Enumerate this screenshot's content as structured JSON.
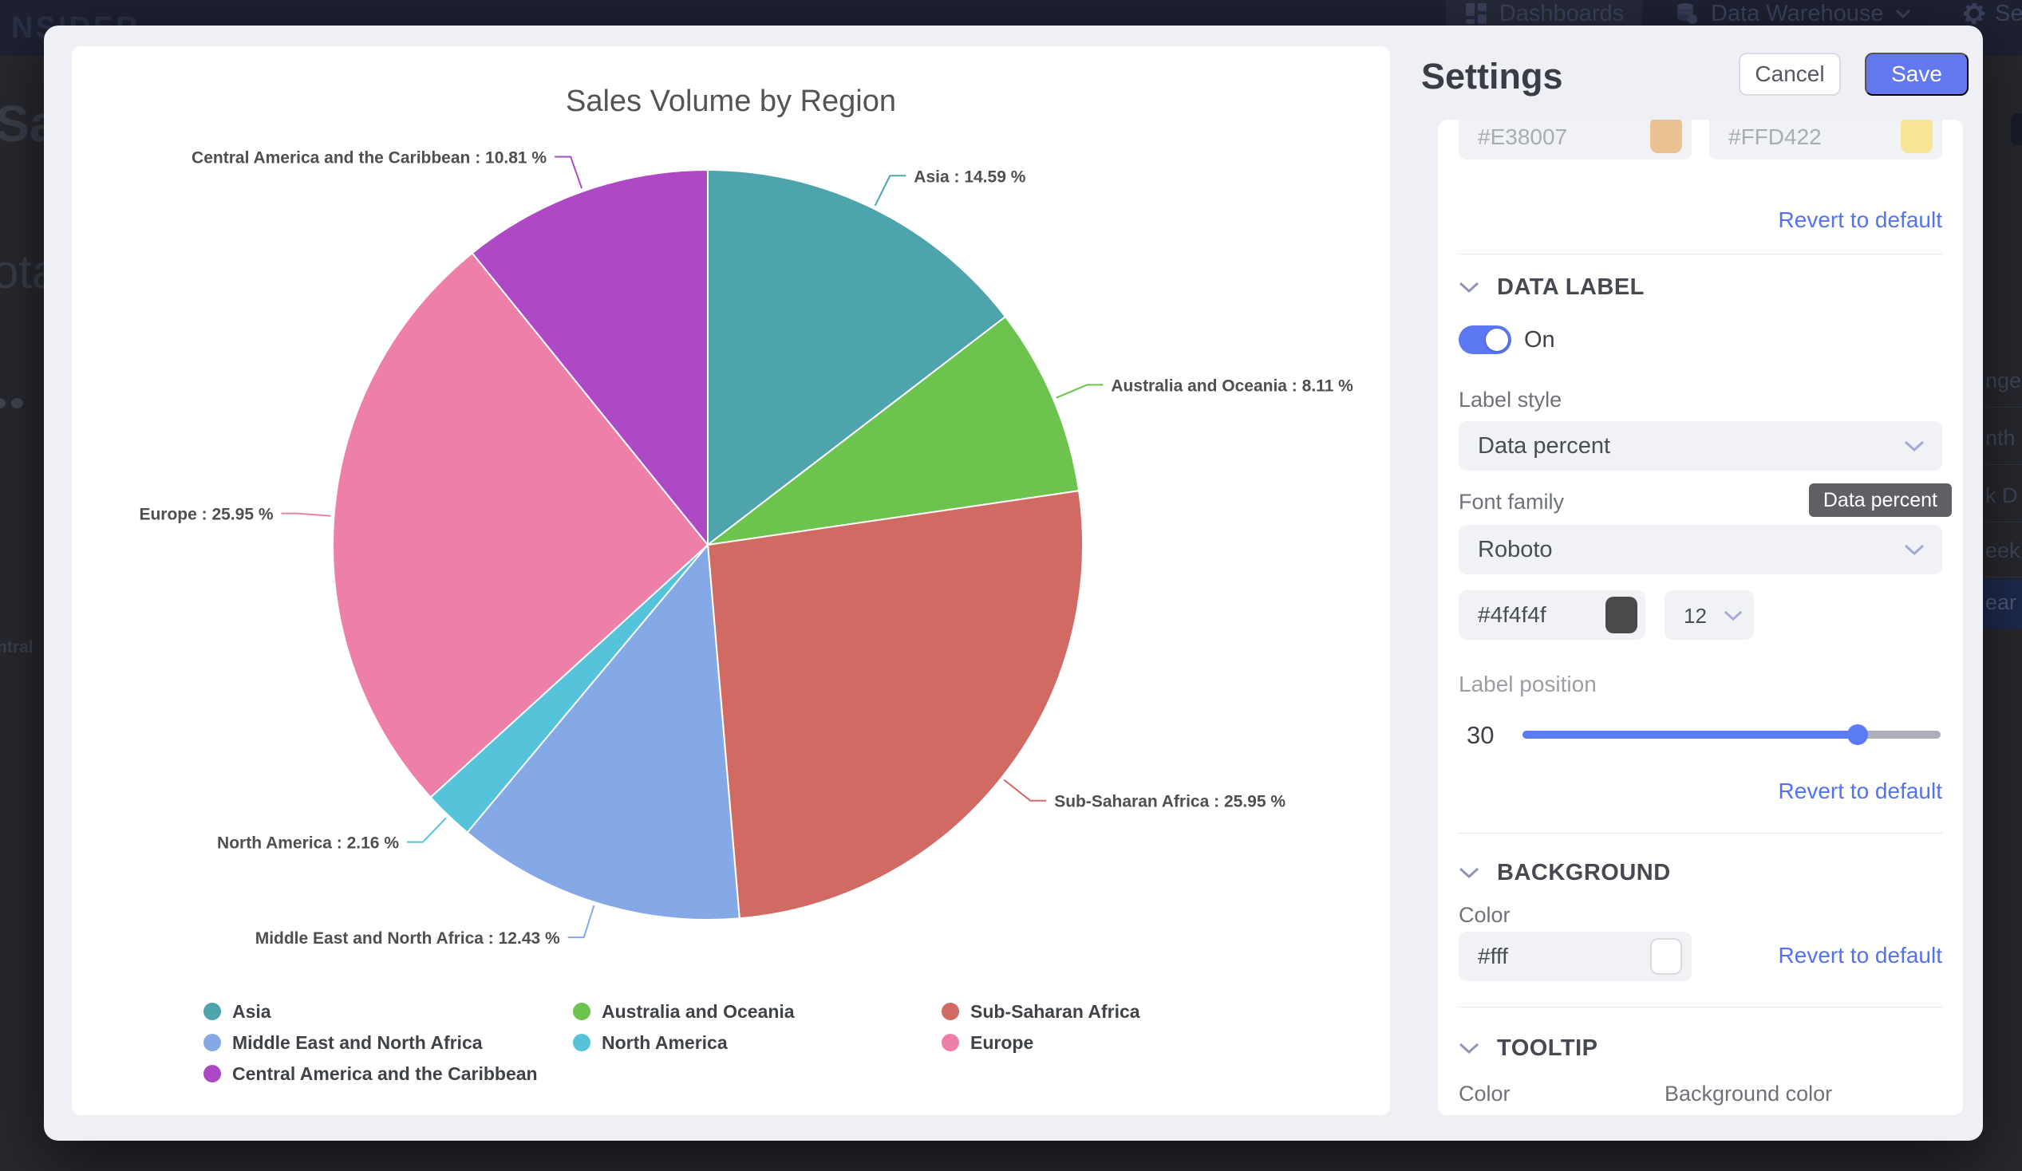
{
  "background": {
    "logo": "NSIDER",
    "nav": {
      "dashboards": "Dashboards",
      "data_warehouse": "Data Warehouse",
      "settings_partial": "Se"
    },
    "left_partial_texts": {
      "t1": "Sal",
      "t2": "ota",
      "t3": "ntral"
    },
    "right_partial_items": [
      "nge",
      "nth",
      "k D",
      "eek",
      "ear"
    ],
    "right_highlight_index": 4
  },
  "chart_data": {
    "type": "pie",
    "title": "Sales Volume by Region",
    "categories": [
      "Asia",
      "Australia and Oceania",
      "Sub-Saharan Africa",
      "Middle East and North Africa",
      "North America",
      "Europe",
      "Central America and the Caribbean"
    ],
    "values": [
      14.59,
      8.11,
      25.95,
      12.43,
      2.16,
      25.95,
      10.81
    ],
    "colors": [
      "#4EA4AC",
      "#6CC44E",
      "#D06A62",
      "#84A9E6",
      "#55C3D9",
      "#EE7FA9",
      "#AD49C5"
    ],
    "label_format": "{name} : {value} %",
    "label_color": "#4F4F4F",
    "legend_position": "bottom"
  },
  "settings": {
    "title": "Settings",
    "cancel_label": "Cancel",
    "save_label": "Save",
    "revert_label": "Revert to default",
    "color_inputs": {
      "first": "#E38007",
      "second": "#FFD422"
    },
    "data_label": {
      "section_title": "DATA LABEL",
      "toggle_state": "On",
      "label_style_label": "Label style",
      "label_style_value": "Data percent",
      "font_family_label": "Font family",
      "font_family_value": "Roboto",
      "tooltip_text": "Data percent",
      "font_color_value": "#4f4f4f",
      "font_size_value": "12",
      "label_position_label": "Label position",
      "label_position_value": "30"
    },
    "background_section": {
      "section_title": "BACKGROUND",
      "color_label": "Color",
      "color_value": "#fff"
    },
    "tooltip_section": {
      "section_title": "TOOLTIP",
      "color_label": "Color",
      "background_color_label": "Background color"
    }
  }
}
